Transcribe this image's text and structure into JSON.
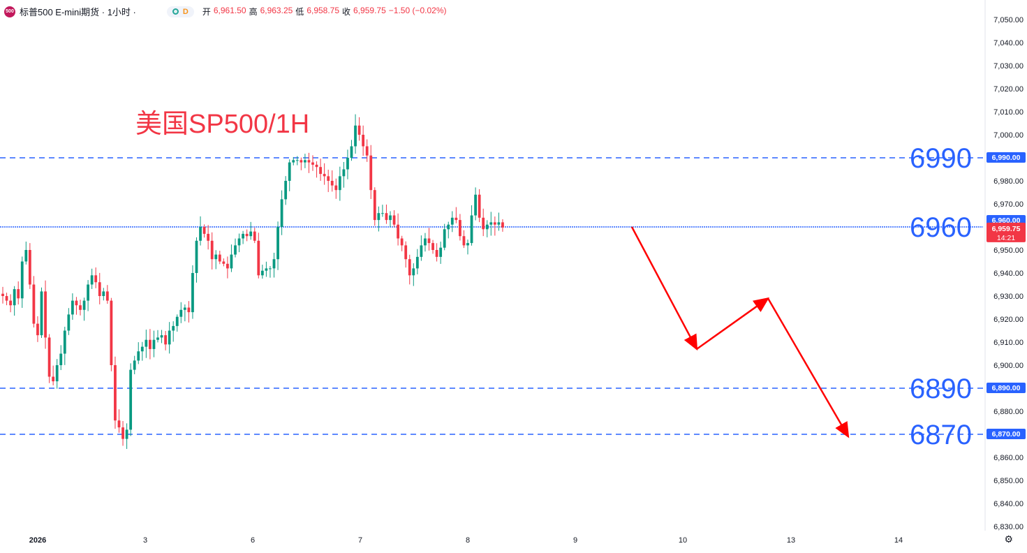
{
  "header": {
    "logo_text": "500",
    "symbol": "标普500 E-mini期货 · 1小时 ·",
    "d_badge": "D",
    "open_label": "开",
    "open": "6,961.50",
    "high_label": "高",
    "high": "6,963.25",
    "low_label": "低",
    "low": "6,958.75",
    "close_label": "收",
    "close": "6,959.75",
    "change": "−1.50 (−0.02%)"
  },
  "chart_data": {
    "type": "candlestick",
    "title": "美国SP500/1H",
    "ylim": [
      6825,
      7053
    ],
    "y_ticks": [
      "7,050.00",
      "7,040.00",
      "7,030.00",
      "7,020.00",
      "7,010.00",
      "7,000.00",
      "6,980.00",
      "6,970.00",
      "6,950.00",
      "6,940.00",
      "6,930.00",
      "6,920.00",
      "6,910.00",
      "6,900.00",
      "6,880.00",
      "6,860.00",
      "6,850.00",
      "6,840.00",
      "6,830.00"
    ],
    "x_labels": [
      "2026",
      "3",
      "6",
      "7",
      "8",
      "9",
      "10",
      "13",
      "14"
    ],
    "levels": [
      {
        "value": 6990,
        "label": "6990",
        "tag": "6,990.00"
      },
      {
        "value": 6960,
        "label": "6960",
        "tag": "6,960.00"
      },
      {
        "value": 6890,
        "label": "6890",
        "tag": "6,890.00"
      },
      {
        "value": 6870,
        "label": "6870",
        "tag": "6,870.00"
      }
    ],
    "current_price": {
      "value": 6959.75,
      "label": "6,959.75",
      "countdown": "14:21"
    },
    "forecast_path": [
      6960,
      6907,
      6929,
      6869
    ],
    "colors": {
      "up": "#089981",
      "down": "#f23645",
      "level": "#2962ff",
      "arrow": "#ff0000",
      "title": "#f23645"
    },
    "closes": [
      6930,
      6928,
      6926,
      6933,
      6929,
      6945,
      6950,
      6935,
      6918,
      6913,
      6932,
      6912,
      6895,
      6893,
      6900,
      6905,
      6915,
      6922,
      6928,
      6926,
      6924,
      6928,
      6935,
      6939,
      6936,
      6930,
      6932,
      6928,
      6900,
      6876,
      6873,
      6868,
      6872,
      6898,
      6902,
      6906,
      6908,
      6911,
      6907,
      6911,
      6912,
      6913,
      6909,
      6915,
      6917,
      6921,
      6924,
      6925,
      6923,
      6940,
      6954,
      6960,
      6957,
      6954,
      6946,
      6948,
      6945,
      6944,
      6942,
      6948,
      6952,
      6955,
      6957,
      6956,
      6958,
      6954,
      6939,
      6941,
      6942,
      6942,
      6946,
      6960,
      6972,
      6980,
      6988,
      6989,
      6989,
      6988,
      6989,
      6988,
      6987,
      6986,
      6983,
      6982,
      6980,
      6978,
      6976,
      6982,
      6985,
      6990,
      6995,
      7004,
      7000,
      6995,
      6991,
      6976,
      6963,
      6966,
      6966,
      6963,
      6965,
      6961,
      6955,
      6952,
      6946,
      6939,
      6942,
      6947,
      6952,
      6955,
      6953,
      6950,
      6947,
      6951,
      6959,
      6961,
      6964,
      6963,
      6956,
      6952,
      6953,
      6965,
      6974,
      6964,
      6959,
      6961,
      6962,
      6961,
      6962,
      6959.75
    ]
  }
}
